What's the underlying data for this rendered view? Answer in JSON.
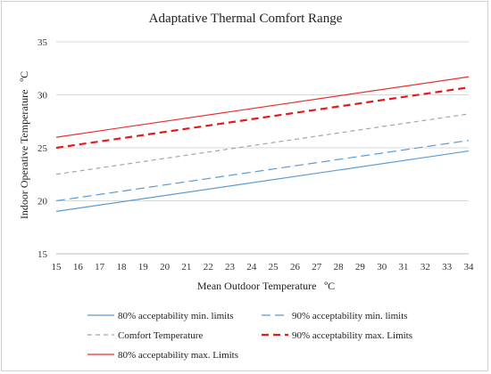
{
  "chart_data": {
    "type": "line",
    "title": "Adaptative Thermal Comfort Range",
    "xlabel": "Mean Outdoor Temperature",
    "xlabel_unit": "ºC",
    "ylabel": "Indoor Operative Temperature",
    "ylabel_unit": "ºC",
    "x": [
      15,
      16,
      17,
      18,
      19,
      20,
      21,
      22,
      23,
      24,
      25,
      26,
      27,
      28,
      29,
      30,
      31,
      32,
      33,
      34
    ],
    "xlim": [
      15,
      34
    ],
    "ylim": [
      15,
      35
    ],
    "yticks": [
      15,
      20,
      25,
      30,
      35
    ],
    "grid": "horizontal",
    "legend_position": "bottom",
    "series": [
      {
        "name": "80% acceptability min. limits",
        "x_range": [
          15,
          34
        ],
        "y_range": [
          19.0,
          24.7
        ],
        "color": "#5b9bd5",
        "dash": "solid",
        "width": 1.2
      },
      {
        "name": "90% acceptability min. limits",
        "x_range": [
          15,
          34
        ],
        "y_range": [
          20.0,
          25.7
        ],
        "color": "#5b9bd5",
        "dash": "long-dash",
        "width": 1.2
      },
      {
        "name": "Comfort Temperature",
        "x_range": [
          15,
          34
        ],
        "y_range": [
          22.5,
          28.2
        ],
        "color": "#a5a5a5",
        "dash": "dash",
        "width": 1.2
      },
      {
        "name": "90% acceptability max. Limits",
        "x_range": [
          15,
          34
        ],
        "y_range": [
          25.0,
          30.7
        ],
        "color": "#e31a1c",
        "dash": "bold-dash",
        "width": 2.2
      },
      {
        "name": "80% acceptability max. Limits",
        "x_range": [
          15,
          34
        ],
        "y_range": [
          26.0,
          31.7
        ],
        "color": "#e83030",
        "dash": "solid",
        "width": 1.2
      }
    ]
  }
}
